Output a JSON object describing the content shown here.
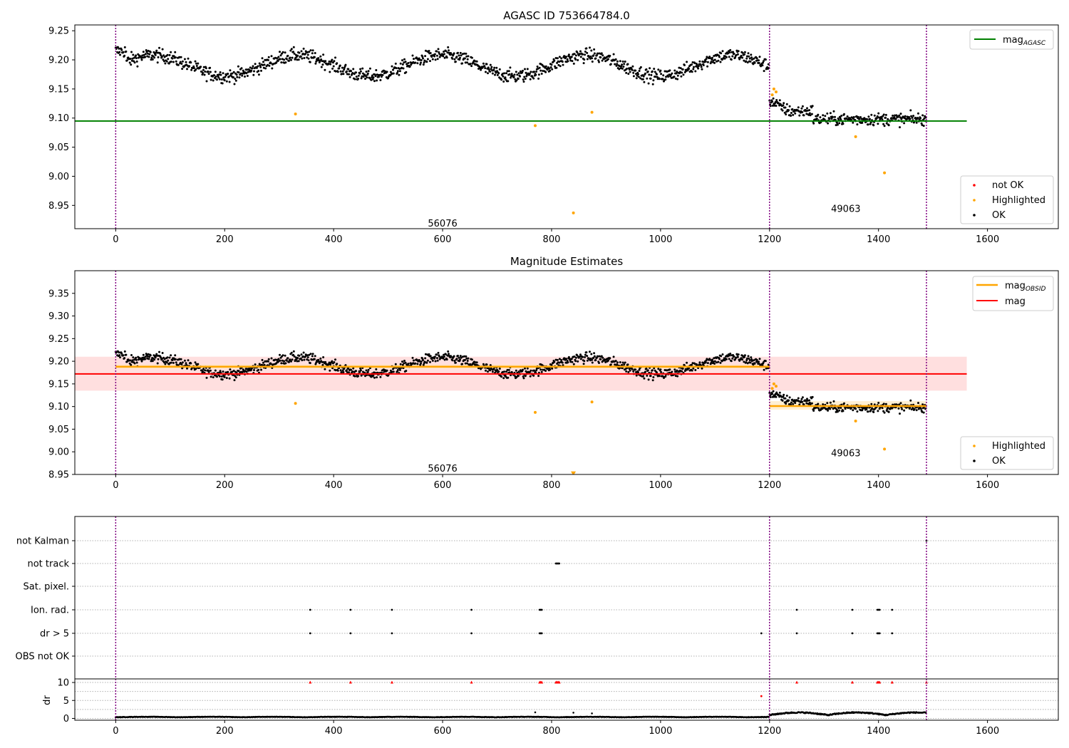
{
  "colors": {
    "ok": "#000000",
    "highlighted": "#FFA500",
    "not_ok": "#FF0000",
    "mag_agasc": "#008000",
    "mag_obsid": "#FFA500",
    "mag": "#FF0000",
    "obs_boundary": "#800080",
    "mag_band": "#FFC0C0",
    "grid": "#b0b0b0"
  },
  "x_ticks": [
    0,
    200,
    400,
    600,
    800,
    1000,
    1200,
    1400,
    1600
  ],
  "chart_data": [
    {
      "type": "scatter",
      "title": "AGASC ID 753664784.0",
      "xlim": [
        -75,
        1730
      ],
      "ylim": [
        8.91,
        9.26
      ],
      "y_ticks": [
        "8.95",
        "9.00",
        "9.05",
        "9.10",
        "9.15",
        "9.20",
        "9.25"
      ],
      "obs_boundaries": [
        0,
        1200,
        1488
      ],
      "obs_labels": [
        {
          "text": "56076",
          "x": 600,
          "y": 8.92
        },
        {
          "text": "49063",
          "x": 1340,
          "y": 8.945
        }
      ],
      "lines": [
        {
          "name": "mag_AGASC",
          "y": 9.095,
          "x0": -75,
          "x1": 1562,
          "color": "#008000"
        }
      ],
      "series": [
        {
          "name": "not OK",
          "marker": "dot",
          "color": "#FF0000",
          "points": []
        },
        {
          "name": "Highlighted",
          "marker": "dot",
          "color": "#FFA500",
          "points": [
            [
              330,
              9.107
            ],
            [
              770,
              9.087
            ],
            [
              840,
              8.937
            ],
            [
              874,
              9.11
            ],
            [
              1205,
              9.14
            ],
            [
              1208,
              9.15
            ],
            [
              1212,
              9.145
            ],
            [
              1358,
              9.068
            ],
            [
              1411,
              9.006
            ]
          ]
        },
        {
          "name": "OK",
          "marker": "dot",
          "color": "#000000"
        }
      ],
      "legend": {
        "position": "top-right",
        "entries": [
          {
            "label": "mag",
            "sub": "AGASC"
          }
        ]
      },
      "legend2": {
        "position": "lower-right",
        "entries": [
          "not OK",
          "Highlighted",
          "OK"
        ]
      }
    },
    {
      "type": "scatter",
      "title": "Magnitude Estimates",
      "xlim": [
        -75,
        1730
      ],
      "ylim": [
        8.95,
        9.4
      ],
      "y_ticks": [
        "8.95",
        "9.00",
        "9.05",
        "9.10",
        "9.15",
        "9.20",
        "9.25",
        "9.30",
        "9.35"
      ],
      "obs_boundaries": [
        0,
        1200,
        1488
      ],
      "obs_labels": [
        {
          "text": "56076",
          "x": 600,
          "y": 8.964
        },
        {
          "text": "49063",
          "x": 1340,
          "y": 8.998
        }
      ],
      "mag": 9.172,
      "mag_band": [
        9.135,
        9.21
      ],
      "mag_extent": [
        -75,
        1562
      ],
      "mag_obsid": [
        {
          "x0": 0,
          "x1": 1200,
          "y": 9.188,
          "band": [
            9.183,
            9.193
          ]
        },
        {
          "x0": 1200,
          "x1": 1488,
          "y": 9.101,
          "band": [
            9.093,
            9.112
          ]
        }
      ],
      "series": [
        {
          "name": "Highlighted",
          "marker": "dot",
          "color": "#FFA500",
          "points": [
            [
              330,
              9.107
            ],
            [
              770,
              9.087
            ],
            [
              874,
              9.11
            ],
            [
              1205,
              9.14
            ],
            [
              1208,
              9.15
            ],
            [
              1212,
              9.145
            ],
            [
              1358,
              9.068
            ],
            [
              1411,
              9.006
            ]
          ]
        },
        {
          "name": "Highlighted (off-scale)",
          "marker": "triangle-down",
          "color": "#FFA500",
          "points": [
            [
              840,
              8.952
            ]
          ]
        },
        {
          "name": "OK",
          "marker": "dot",
          "color": "#000000"
        }
      ],
      "legend": {
        "position": "top-right",
        "entries": [
          {
            "label": "mag",
            "sub": "OBSID"
          },
          {
            "label": "mag",
            "sub": ""
          }
        ]
      },
      "legend2": {
        "position": "lower-right",
        "entries": [
          "Highlighted",
          "OK"
        ]
      }
    },
    {
      "type": "scatter",
      "title": "",
      "xlim": [
        -75,
        1730
      ],
      "obs_boundaries": [
        0,
        1200,
        1488
      ],
      "flag_rows": [
        "not Kalman",
        "not track",
        "Sat. pixel.",
        "Ion. rad.",
        "dr > 5",
        "OBS not OK"
      ],
      "flags": {
        "not Kalman": [
          1488
        ],
        "not track": [
          808,
          810,
          812,
          814
        ],
        "Sat. pixel.": [],
        "Ion. rad.": [
          357,
          431,
          507,
          653,
          778,
          780,
          782,
          1250,
          1352,
          1398,
          1400,
          1402,
          1425
        ],
        "dr > 5": [
          357,
          431,
          507,
          653,
          778,
          780,
          782,
          1185,
          1250,
          1352,
          1398,
          1400,
          1402,
          1425
        ],
        "OBS not OK": []
      },
      "dr_axis": {
        "ylabel": "dr",
        "ylim": [
          -0.5,
          11
        ],
        "y_ticks": [
          "0",
          "5",
          "10"
        ],
        "threshold": 10,
        "clipped": [
          357,
          431,
          507,
          653,
          778,
          780,
          782,
          808,
          810,
          812,
          814,
          1250,
          1352,
          1398,
          1400,
          1402,
          1425,
          1488
        ],
        "red_points": [
          [
            1185,
            6.2
          ]
        ],
        "outliers": [
          [
            770,
            1.7
          ],
          [
            840,
            1.6
          ],
          [
            874,
            1.4
          ]
        ]
      }
    }
  ]
}
